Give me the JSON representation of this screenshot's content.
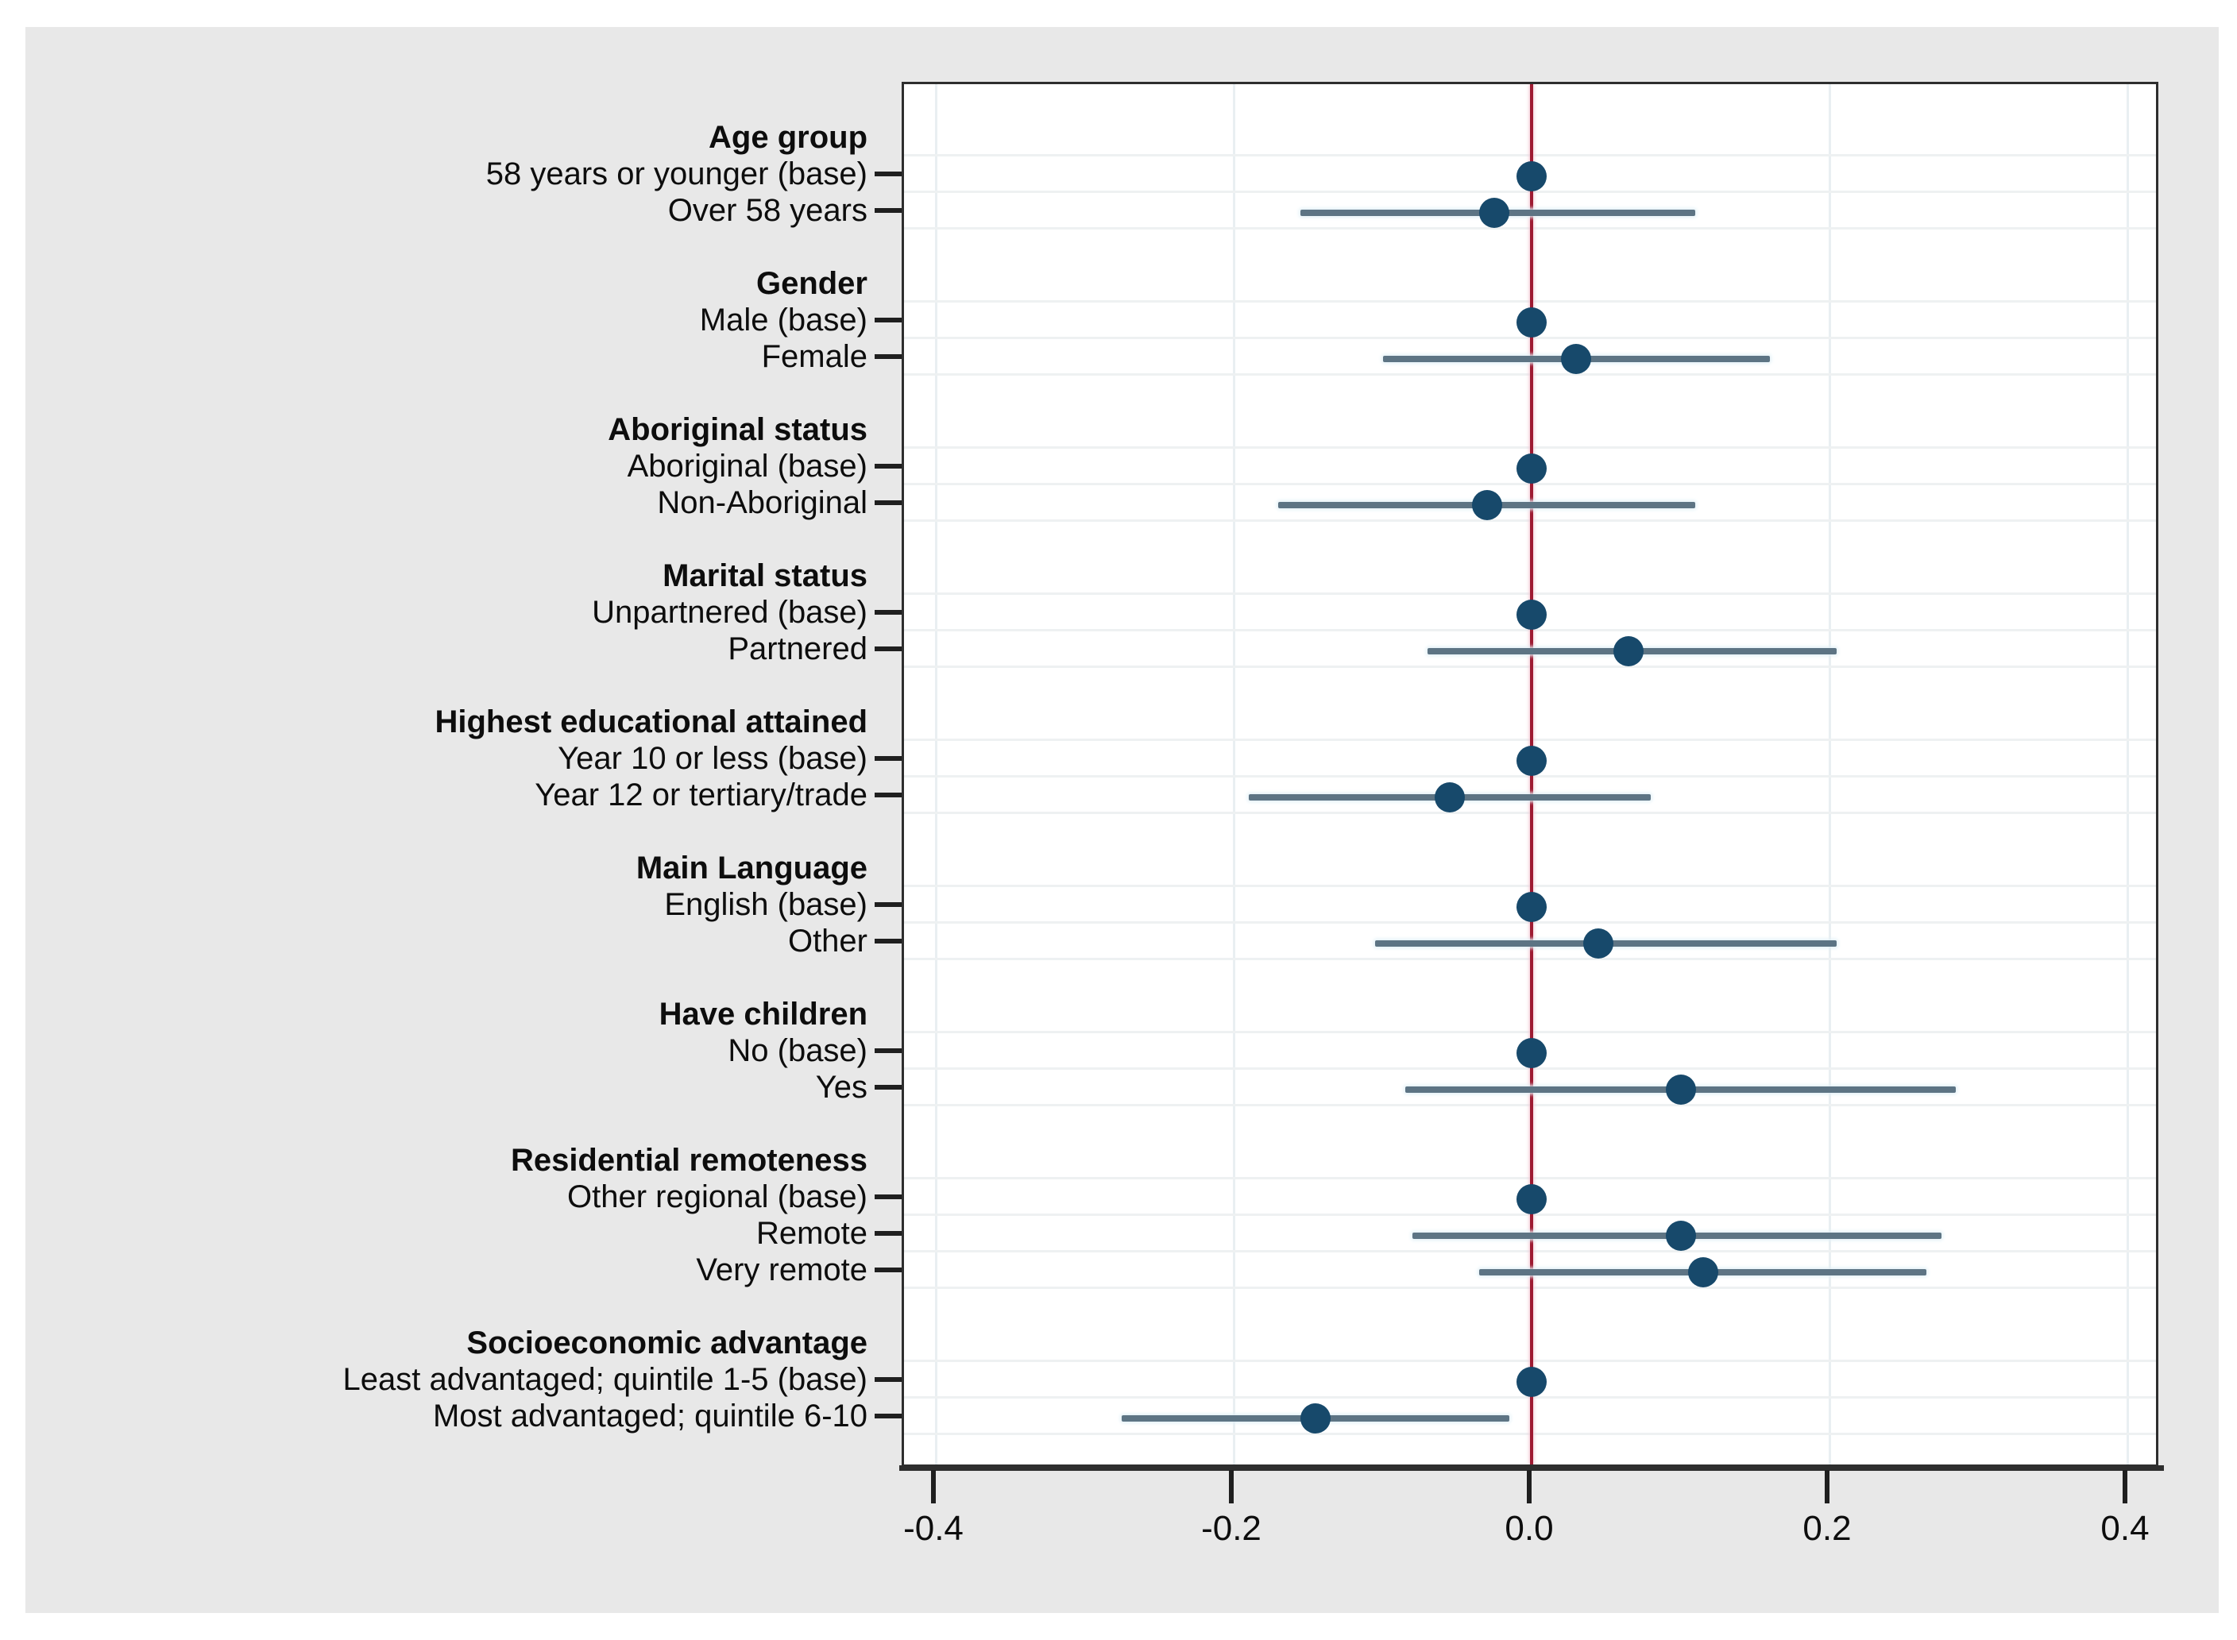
{
  "figure": {
    "background_color": "#e8e8e8",
    "plot_background_color": "#ffffff",
    "border_color": "#2e2e2e",
    "zero_line_color": "#9e1b32",
    "dot_color": "#17496b",
    "ci_color": "#5d7484",
    "hgrid_color": "#eef1f2",
    "vgrid_color": "#e9eff2",
    "tick_color": "#1f1f1f",
    "text_color": "#0d0d0d"
  },
  "chart_data": {
    "type": "scatter",
    "subtype": "dot-and-whisker coefficient plot",
    "title": "",
    "xlabel": "",
    "ylabel": "",
    "xlim": [
      -0.422,
      0.422
    ],
    "x_ticks": [
      -0.4,
      -0.2,
      0.0,
      0.2,
      0.4
    ],
    "x_tick_labels": [
      "-0.4",
      "-0.2",
      "0.0",
      "0.2",
      "0.4"
    ],
    "zero_reference_line": 0.0,
    "grid": "horizontal row guides and vertical tick guides, very light",
    "legend": "none",
    "groups": [
      {
        "header": "Age group",
        "items": [
          {
            "label": "58 years or younger (base)",
            "estimate": 0.0,
            "base": true
          },
          {
            "label": "Over 58 years",
            "estimate": -0.025,
            "ci_low": -0.155,
            "ci_high": 0.11
          }
        ]
      },
      {
        "header": "Gender",
        "items": [
          {
            "label": "Male (base)",
            "estimate": 0.0,
            "base": true
          },
          {
            "label": "Female",
            "estimate": 0.03,
            "ci_low": -0.1,
            "ci_high": 0.16
          }
        ]
      },
      {
        "header": "Aboriginal status",
        "items": [
          {
            "label": "Aboriginal (base)",
            "estimate": 0.0,
            "base": true
          },
          {
            "label": "Non-Aboriginal",
            "estimate": -0.03,
            "ci_low": -0.17,
            "ci_high": 0.11
          }
        ]
      },
      {
        "header": "Marital status",
        "items": [
          {
            "label": "Unpartnered (base)",
            "estimate": 0.0,
            "base": true
          },
          {
            "label": "Partnered",
            "estimate": 0.065,
            "ci_low": -0.07,
            "ci_high": 0.205
          }
        ]
      },
      {
        "header": "Highest educational attained",
        "items": [
          {
            "label": "Year 10 or less (base)",
            "estimate": 0.0,
            "base": true
          },
          {
            "label": "Year 12 or tertiary/trade",
            "estimate": -0.055,
            "ci_low": -0.19,
            "ci_high": 0.08
          }
        ]
      },
      {
        "header": "Main Language",
        "items": [
          {
            "label": "English (base)",
            "estimate": 0.0,
            "base": true
          },
          {
            "label": "Other",
            "estimate": 0.045,
            "ci_low": -0.105,
            "ci_high": 0.205
          }
        ]
      },
      {
        "header": "Have children",
        "items": [
          {
            "label": "No (base)",
            "estimate": 0.0,
            "base": true
          },
          {
            "label": "Yes",
            "estimate": 0.1,
            "ci_low": -0.085,
            "ci_high": 0.285
          }
        ]
      },
      {
        "header": "Residential remoteness",
        "items": [
          {
            "label": "Other regional (base)",
            "estimate": 0.0,
            "base": true
          },
          {
            "label": "Remote",
            "estimate": 0.1,
            "ci_low": -0.08,
            "ci_high": 0.275
          },
          {
            "label": "Very remote",
            "estimate": 0.115,
            "ci_low": -0.035,
            "ci_high": 0.265
          }
        ]
      },
      {
        "header": "Socioeconomic advantage",
        "items": [
          {
            "label": "Least advantaged; quintile 1-5 (base)",
            "estimate": 0.0,
            "base": true
          },
          {
            "label": "Most advantaged; quintile 6-10",
            "estimate": -0.145,
            "ci_low": -0.275,
            "ci_high": -0.015
          }
        ]
      }
    ]
  }
}
